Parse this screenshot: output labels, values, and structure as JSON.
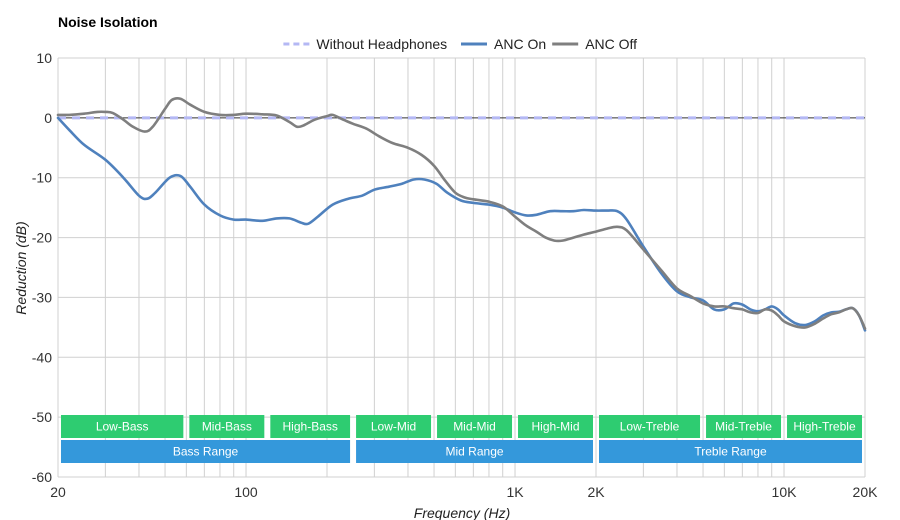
{
  "chart_data": {
    "type": "line",
    "title": "Noise Isolation",
    "xlabel": "Frequency (Hz)",
    "ylabel": "Reduction (dB)",
    "x_scale": "log",
    "xlim": [
      20,
      20000
    ],
    "ylim": [
      -60,
      10
    ],
    "grid": true,
    "legend_position": "top-center",
    "x_major_ticks": [
      {
        "value": 20,
        "label": "20"
      },
      {
        "value": 100,
        "label": "100"
      },
      {
        "value": 1000,
        "label": "1K"
      },
      {
        "value": 2000,
        "label": "2K"
      },
      {
        "value": 10000,
        "label": "10K"
      },
      {
        "value": 20000,
        "label": "20K"
      }
    ],
    "y_ticks": [
      10,
      0,
      -10,
      -20,
      -30,
      -40,
      -50,
      -60
    ],
    "series": [
      {
        "name": "Without Headphones",
        "style": "dashed",
        "color": "#b4b8f4",
        "points": [
          [
            20,
            0
          ],
          [
            20000,
            0
          ]
        ]
      },
      {
        "name": "ANC On",
        "style": "solid",
        "color": "#4f81bd",
        "points": [
          [
            20,
            0
          ],
          [
            22,
            -2
          ],
          [
            25,
            -4.5
          ],
          [
            30,
            -7
          ],
          [
            35,
            -10
          ],
          [
            40,
            -13
          ],
          [
            43,
            -13.5
          ],
          [
            46,
            -12.5
          ],
          [
            52,
            -10
          ],
          [
            57,
            -9.7
          ],
          [
            62,
            -11.5
          ],
          [
            70,
            -14.5
          ],
          [
            80,
            -16.3
          ],
          [
            90,
            -17
          ],
          [
            100,
            -17
          ],
          [
            115,
            -17.2
          ],
          [
            130,
            -16.8
          ],
          [
            145,
            -16.8
          ],
          [
            160,
            -17.5
          ],
          [
            170,
            -17.7
          ],
          [
            185,
            -16.5
          ],
          [
            210,
            -14.5
          ],
          [
            240,
            -13.5
          ],
          [
            270,
            -13
          ],
          [
            300,
            -12
          ],
          [
            340,
            -11.5
          ],
          [
            380,
            -11
          ],
          [
            420,
            -10.3
          ],
          [
            460,
            -10.3
          ],
          [
            510,
            -11
          ],
          [
            560,
            -12.5
          ],
          [
            630,
            -13.8
          ],
          [
            700,
            -14.2
          ],
          [
            800,
            -14.5
          ],
          [
            900,
            -15
          ],
          [
            1000,
            -15.8
          ],
          [
            1100,
            -16.3
          ],
          [
            1200,
            -16.2
          ],
          [
            1350,
            -15.6
          ],
          [
            1500,
            -15.6
          ],
          [
            1650,
            -15.6
          ],
          [
            1800,
            -15.4
          ],
          [
            2000,
            -15.5
          ],
          [
            2200,
            -15.5
          ],
          [
            2400,
            -15.6
          ],
          [
            2600,
            -17
          ],
          [
            3000,
            -21.5
          ],
          [
            3500,
            -26
          ],
          [
            4000,
            -29
          ],
          [
            4500,
            -30
          ],
          [
            5000,
            -30.5
          ],
          [
            5500,
            -32
          ],
          [
            6000,
            -32
          ],
          [
            6500,
            -31
          ],
          [
            7000,
            -31.2
          ],
          [
            7500,
            -32
          ],
          [
            8000,
            -32.3
          ],
          [
            8500,
            -32
          ],
          [
            9000,
            -31.5
          ],
          [
            9500,
            -32
          ],
          [
            10000,
            -33
          ],
          [
            11000,
            -34.3
          ],
          [
            12000,
            -34.6
          ],
          [
            13000,
            -34
          ],
          [
            14000,
            -33
          ],
          [
            15000,
            -32.5
          ],
          [
            16000,
            -32.4
          ],
          [
            17000,
            -32
          ],
          [
            18000,
            -31.8
          ],
          [
            19000,
            -33
          ],
          [
            20000,
            -35.5
          ]
        ]
      },
      {
        "name": "ANC Off",
        "style": "solid",
        "color": "#7f7f7f",
        "points": [
          [
            20,
            0.5
          ],
          [
            22,
            0.5
          ],
          [
            25,
            0.7
          ],
          [
            28,
            1
          ],
          [
            30,
            1
          ],
          [
            32,
            0.8
          ],
          [
            35,
            -0.3
          ],
          [
            38,
            -1.5
          ],
          [
            42,
            -2.3
          ],
          [
            45,
            -1.5
          ],
          [
            50,
            1.5
          ],
          [
            53,
            3
          ],
          [
            57,
            3.2
          ],
          [
            62,
            2.2
          ],
          [
            70,
            1
          ],
          [
            80,
            0.5
          ],
          [
            90,
            0.5
          ],
          [
            100,
            0.7
          ],
          [
            115,
            0.6
          ],
          [
            130,
            0.4
          ],
          [
            145,
            -0.7
          ],
          [
            155,
            -1.5
          ],
          [
            165,
            -1.2
          ],
          [
            180,
            -0.3
          ],
          [
            200,
            0.3
          ],
          [
            210,
            0.5
          ],
          [
            230,
            -0.3
          ],
          [
            250,
            -1
          ],
          [
            280,
            -1.8
          ],
          [
            310,
            -3
          ],
          [
            350,
            -4.2
          ],
          [
            400,
            -5
          ],
          [
            450,
            -6.2
          ],
          [
            500,
            -8
          ],
          [
            550,
            -10.5
          ],
          [
            600,
            -12.5
          ],
          [
            650,
            -13.3
          ],
          [
            700,
            -13.6
          ],
          [
            800,
            -14
          ],
          [
            900,
            -14.8
          ],
          [
            1000,
            -16.5
          ],
          [
            1100,
            -18
          ],
          [
            1200,
            -19
          ],
          [
            1300,
            -20
          ],
          [
            1400,
            -20.5
          ],
          [
            1500,
            -20.5
          ],
          [
            1650,
            -20
          ],
          [
            1800,
            -19.5
          ],
          [
            2000,
            -19
          ],
          [
            2200,
            -18.5
          ],
          [
            2400,
            -18.2
          ],
          [
            2600,
            -18.8
          ],
          [
            3000,
            -22
          ],
          [
            3500,
            -25.5
          ],
          [
            4000,
            -28.5
          ],
          [
            4500,
            -29.8
          ],
          [
            5000,
            -31
          ],
          [
            5500,
            -31.5
          ],
          [
            6000,
            -31.5
          ],
          [
            6500,
            -31.8
          ],
          [
            7000,
            -32
          ],
          [
            7500,
            -32.5
          ],
          [
            8000,
            -32.6
          ],
          [
            8500,
            -32
          ],
          [
            9000,
            -32.2
          ],
          [
            9500,
            -33
          ],
          [
            10000,
            -34
          ],
          [
            11000,
            -34.8
          ],
          [
            12000,
            -35
          ],
          [
            13000,
            -34.4
          ],
          [
            14000,
            -33.5
          ],
          [
            15000,
            -32.8
          ],
          [
            16000,
            -32.5
          ],
          [
            17000,
            -32
          ],
          [
            18000,
            -31.8
          ],
          [
            19000,
            -33
          ],
          [
            20000,
            -35.2
          ]
        ]
      }
    ],
    "band_rows": [
      {
        "row": 1,
        "color": "#2ecc71",
        "bands": [
          {
            "label": "Low-Bass",
            "from": 20,
            "to": 60
          },
          {
            "label": "Mid-Bass",
            "from": 60,
            "to": 120
          },
          {
            "label": "High-Bass",
            "from": 120,
            "to": 250
          },
          {
            "label": "Low-Mid",
            "from": 250,
            "to": 500
          },
          {
            "label": "Mid-Mid",
            "from": 500,
            "to": 1000
          },
          {
            "label": "High-Mid",
            "from": 1000,
            "to": 2000
          },
          {
            "label": "Low-Treble",
            "from": 2000,
            "to": 5000
          },
          {
            "label": "Mid-Treble",
            "from": 5000,
            "to": 10000
          },
          {
            "label": "High-Treble",
            "from": 10000,
            "to": 20000
          }
        ]
      },
      {
        "row": 2,
        "color": "#3498db",
        "bands": [
          {
            "label": "Bass Range",
            "from": 20,
            "to": 250
          },
          {
            "label": "Mid Range",
            "from": 250,
            "to": 2000
          },
          {
            "label": "Treble Range",
            "from": 2000,
            "to": 20000
          }
        ]
      }
    ]
  }
}
